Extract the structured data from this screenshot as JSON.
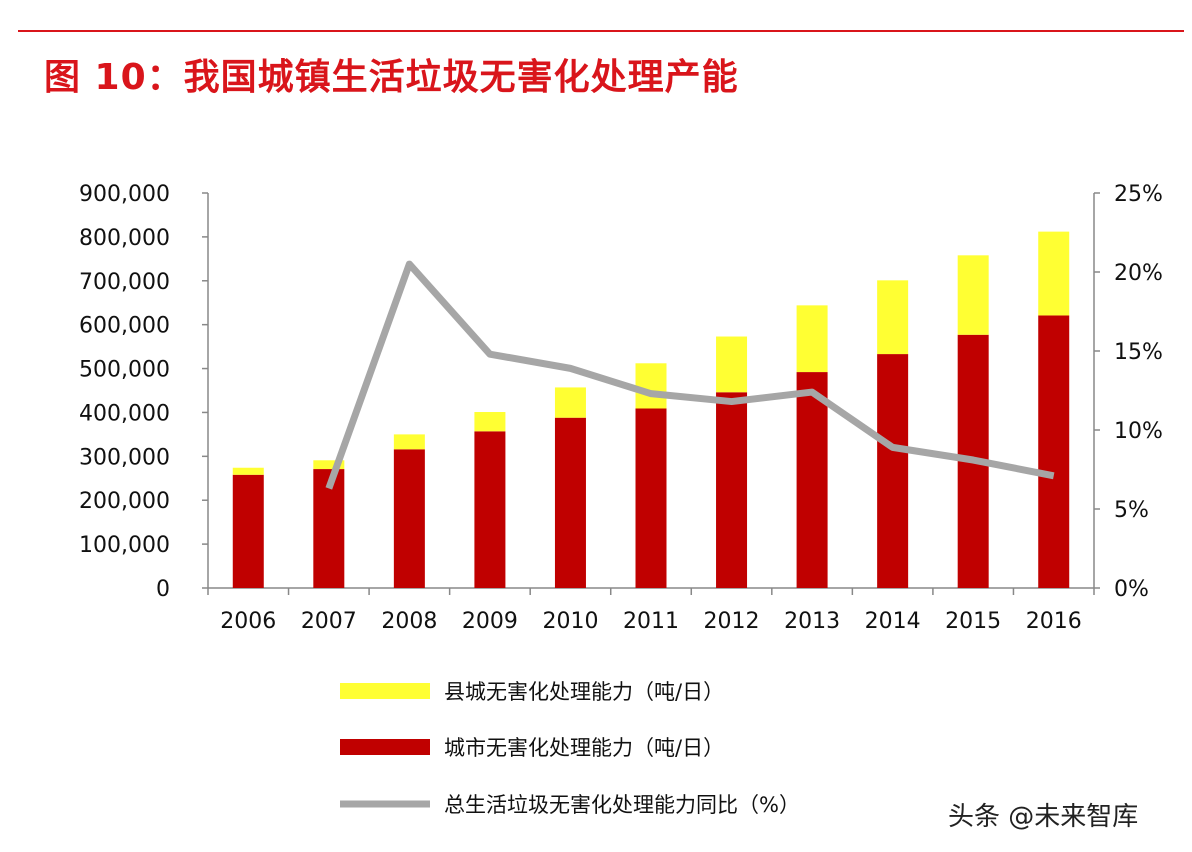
{
  "page": {
    "title": "图 10：我国城镇生活垃圾无害化处理产能",
    "watermark": "头条 @未来智库"
  },
  "colors": {
    "title": "#d9151b",
    "county": "#ffff33",
    "city": "#c00000",
    "yoy": "#a6a6a6",
    "axis": "#888888"
  },
  "chart_data": {
    "type": "bar",
    "stacked": true,
    "categories": [
      "2006",
      "2007",
      "2008",
      "2009",
      "2010",
      "2011",
      "2012",
      "2013",
      "2014",
      "2015",
      "2016"
    ],
    "series": [
      {
        "name": "城市无害化处理能力（吨/日）",
        "kind": "bar",
        "axis": "left",
        "color": "#c00000",
        "values": [
          258000,
          271000,
          316000,
          357000,
          388000,
          409000,
          446000,
          492000,
          533000,
          577000,
          621000
        ]
      },
      {
        "name": "县城无害化处理能力（吨/日）",
        "kind": "bar",
        "axis": "left",
        "color": "#ffff33",
        "values": [
          16000,
          20000,
          34000,
          44000,
          69000,
          103000,
          127000,
          152000,
          168000,
          181000,
          191000
        ]
      },
      {
        "name": "总生活垃圾无害化处理能力同比（%）",
        "kind": "line",
        "axis": "right",
        "color": "#a6a6a6",
        "values": [
          null,
          6.3,
          20.5,
          14.8,
          13.9,
          12.3,
          11.8,
          12.4,
          8.9,
          8.1,
          7.1
        ]
      }
    ],
    "y_left": {
      "range": [
        0,
        900000
      ],
      "ticks": [
        "0",
        "100,000",
        "200,000",
        "300,000",
        "400,000",
        "500,000",
        "600,000",
        "700,000",
        "800,000",
        "900,000"
      ]
    },
    "y_right": {
      "range": [
        0,
        25
      ],
      "ticks": [
        "0%",
        "5%",
        "10%",
        "15%",
        "20%",
        "25%"
      ]
    },
    "legend": {
      "position": "bottom",
      "order": [
        1,
        0,
        2
      ]
    },
    "grid": false
  }
}
